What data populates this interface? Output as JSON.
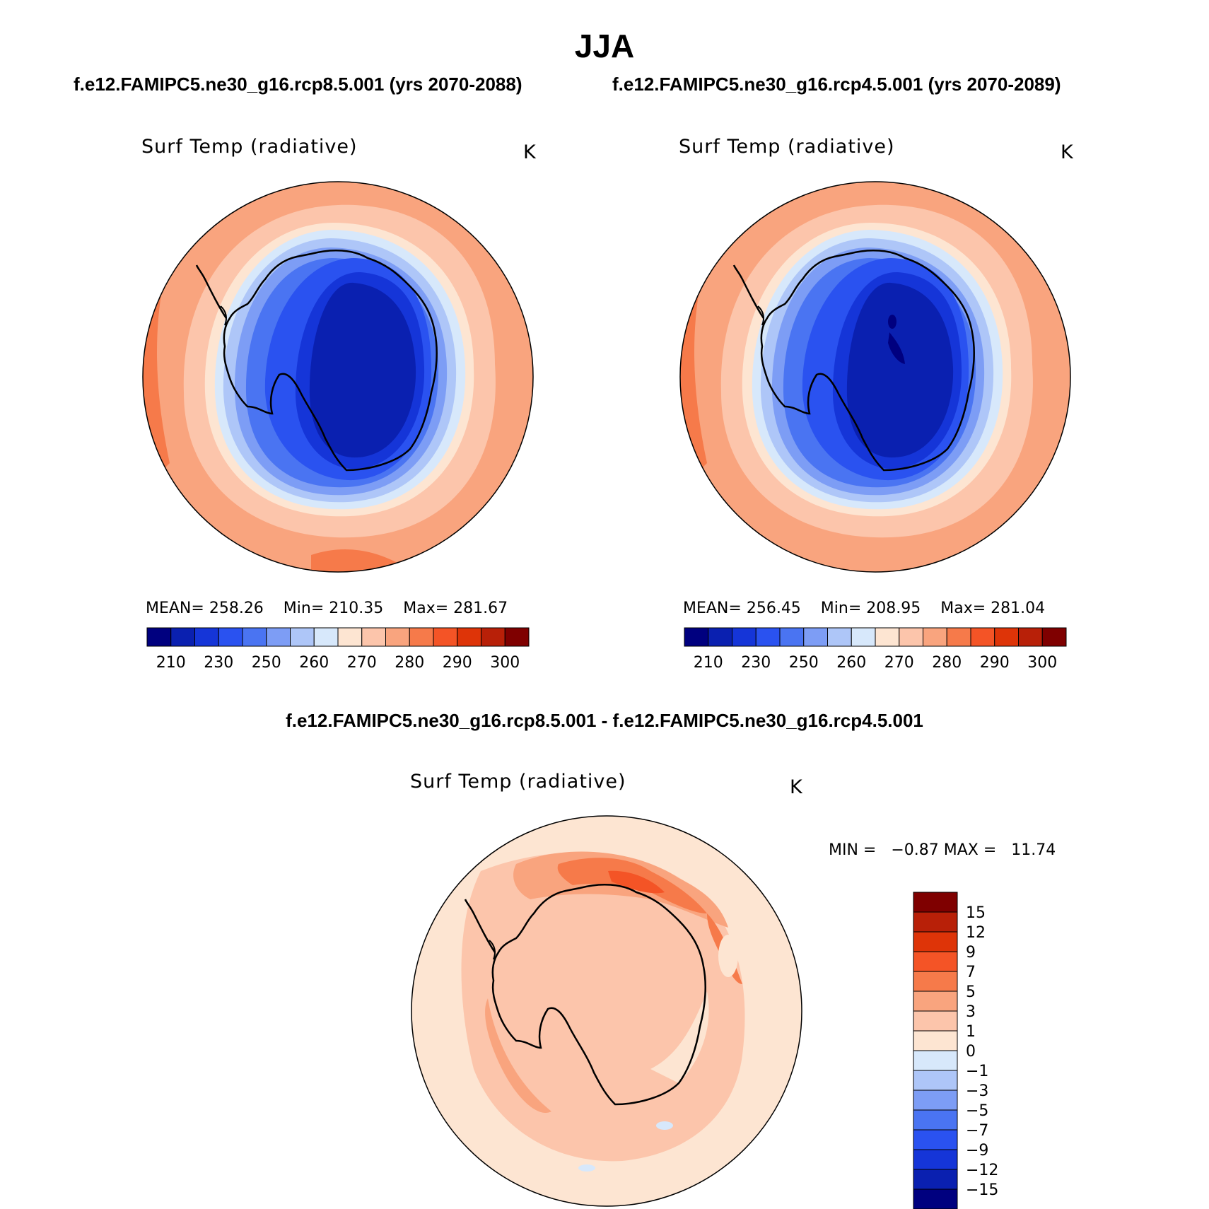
{
  "season": "JJA",
  "panels": [
    {
      "case_title": "f.e12.FAMIPC5.ne30_g16.rcp8.5.001 (yrs 2070-2088)",
      "variable": "Surf Temp (radiative)",
      "units": "K",
      "stats": {
        "mean_label": "MEAN=",
        "mean": "258.26",
        "min_label": "Min=",
        "min": "210.35",
        "max_label": "Max=",
        "max": "281.67"
      }
    },
    {
      "case_title": "f.e12.FAMIPC5.ne30_g16.rcp4.5.001 (yrs 2070-2089)",
      "variable": "Surf Temp (radiative)",
      "units": "K",
      "stats": {
        "mean_label": "MEAN=",
        "mean": "256.45",
        "min_label": "Min=",
        "min": "208.95",
        "max_label": "Max=",
        "max": "281.04"
      }
    }
  ],
  "difference": {
    "title": "f.e12.FAMIPC5.ne30_g16.rcp8.5.001 - f.e12.FAMIPC5.ne30_g16.rcp4.5.001",
    "variable": "Surf Temp (radiative)",
    "units": "K",
    "stats": {
      "min_label": "MIN =",
      "min": "−0.87",
      "max_label": "MAX =",
      "max": "11.74"
    }
  },
  "colorbar_abs": {
    "colors": [
      "#00007f",
      "#0a20b0",
      "#1535d8",
      "#2a52f0",
      "#4a74f2",
      "#7d9df5",
      "#aec6f8",
      "#d7e8fb",
      "#fde5d2",
      "#fcc5ab",
      "#f9a47e",
      "#f67a4a",
      "#f45426",
      "#de3408",
      "#b82008",
      "#7f0000"
    ],
    "labels": [
      "210",
      "230",
      "250",
      "260",
      "270",
      "280",
      "290",
      "300"
    ]
  },
  "colorbar_diff": {
    "colors": [
      "#7f0000",
      "#b82008",
      "#de3408",
      "#f45426",
      "#f67a4a",
      "#f9a47e",
      "#fcc5ab",
      "#fde5d2",
      "#d7e8fb",
      "#aec6f8",
      "#7d9df5",
      "#4a74f2",
      "#2a52f0",
      "#1535d8",
      "#0a20b0",
      "#00007f"
    ],
    "labels": [
      "15",
      "12",
      "9",
      "7",
      "5",
      "3",
      "1",
      "0",
      "−1",
      "−3",
      "−5",
      "−7",
      "−9",
      "−12",
      "−15"
    ]
  }
}
